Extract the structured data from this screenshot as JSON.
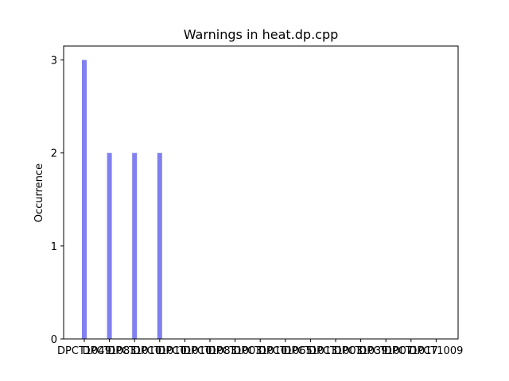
{
  "chart_data": {
    "type": "bar",
    "title": "Warnings in heat.dp.cpp",
    "xlabel": "",
    "ylabel": "Occurrence",
    "categories": [
      "DPCT1049",
      "DPCT1083",
      "DPCT1010",
      "DPCT1010",
      "DPCT1010",
      "DPCT1083",
      "DPCT1003",
      "DPCT1010",
      "DPCT1065",
      "DPCT1013",
      "DPCT1003",
      "DPCT1039",
      "DPCT1007",
      "DPCT1017",
      "DPCT1009"
    ],
    "values": [
      3,
      2,
      2,
      2,
      0,
      0,
      0,
      0,
      0,
      0,
      0,
      0,
      0,
      0,
      0
    ],
    "yticks": [
      0,
      1,
      2,
      3
    ],
    "ylim": [
      0,
      3.15
    ],
    "bar_color": "#8080f0",
    "grid": false
  }
}
